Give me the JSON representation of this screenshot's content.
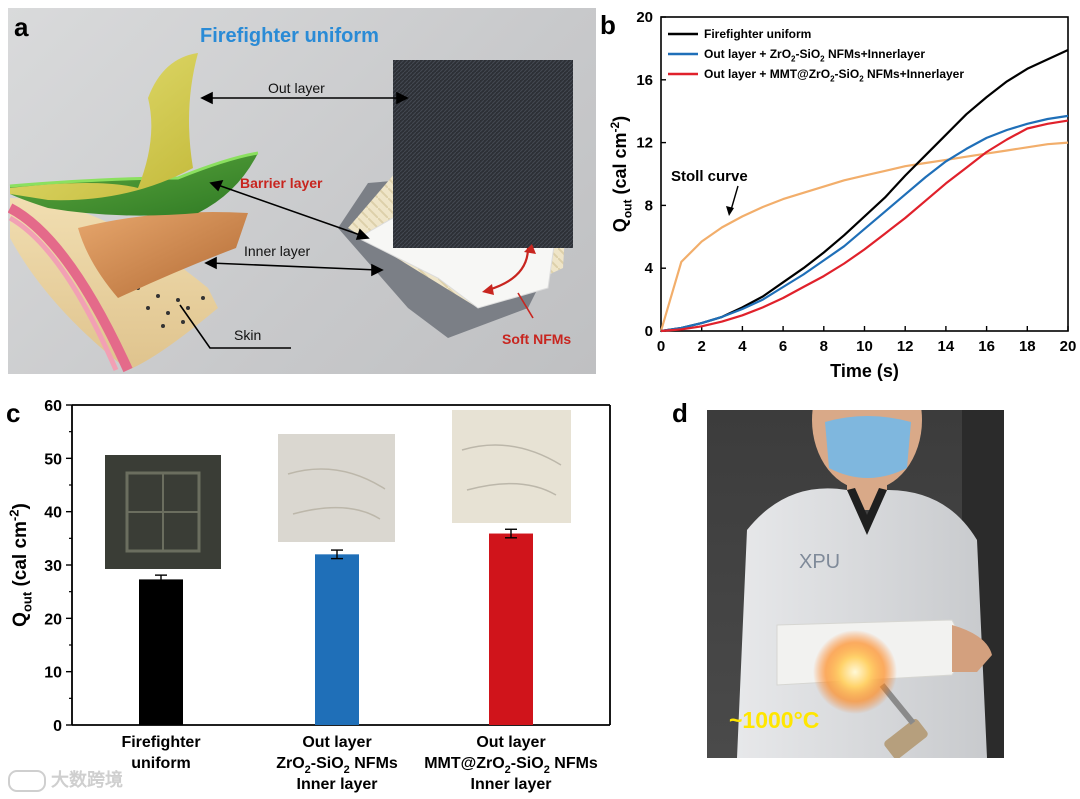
{
  "panel_a": {
    "letter": "a",
    "title": "Firefighter uniform",
    "labels": {
      "out_layer": "Out layer",
      "barrier_layer": "Barrier layer",
      "inner_layer": "Inner layer",
      "skin": "Skin",
      "soft_nfms": "Soft NFMs"
    },
    "colors": {
      "title": "#2a8bd6",
      "barrier": "#c8251f",
      "soft": "#c8251f"
    }
  },
  "panel_b": {
    "letter": "b",
    "annotation": "Stoll curve"
  },
  "panel_c": {
    "letter": "c",
    "category_lines": [
      [
        "Firefighter",
        "uniform"
      ],
      [
        "Out layer",
        "ZrO2-SiO2 NFMs",
        "Inner layer"
      ],
      [
        "Out layer",
        "MMT@ZrO2-SiO2 NFMs",
        "Inner layer"
      ]
    ]
  },
  "panel_d": {
    "letter": "d",
    "coat_text": "XPU",
    "temperature": "~1000°C"
  },
  "watermark": "大数跨境",
  "chart_data": [
    {
      "type": "line",
      "xlabel": "Time (s)",
      "ylabel": "Qout (cal cm-2)",
      "xlim": [
        0,
        20
      ],
      "ylim": [
        0,
        20
      ],
      "xticks": [
        0,
        2,
        4,
        6,
        8,
        10,
        12,
        14,
        16,
        18,
        20
      ],
      "yticks": [
        0,
        4,
        8,
        12,
        16,
        20
      ],
      "legend_position": "top-left",
      "x": [
        0,
        1,
        2,
        3,
        4,
        5,
        6,
        7,
        8,
        9,
        10,
        11,
        12,
        13,
        14,
        15,
        16,
        17,
        18,
        19,
        20
      ],
      "series": [
        {
          "name": "Firefighter uniform",
          "color": "#000000",
          "values": [
            0,
            0.2,
            0.5,
            0.9,
            1.5,
            2.2,
            3.1,
            4.0,
            5.0,
            6.1,
            7.3,
            8.5,
            9.9,
            11.2,
            12.5,
            13.8,
            14.9,
            15.9,
            16.7,
            17.3,
            17.9
          ]
        },
        {
          "name": "Out layer + ZrO2-SiO2 NFMs+Innerlayer",
          "color": "#1f6fb8",
          "values": [
            0,
            0.2,
            0.5,
            0.9,
            1.4,
            2.0,
            2.8,
            3.6,
            4.5,
            5.4,
            6.5,
            7.6,
            8.7,
            9.8,
            10.8,
            11.6,
            12.3,
            12.8,
            13.2,
            13.5,
            13.7
          ]
        },
        {
          "name": "Out layer + MMT@ZrO2-SiO2 NFMs+Innerlayer",
          "color": "#e0212b",
          "values": [
            0,
            0.1,
            0.3,
            0.6,
            1.0,
            1.5,
            2.1,
            2.8,
            3.5,
            4.3,
            5.2,
            6.2,
            7.2,
            8.3,
            9.4,
            10.4,
            11.4,
            12.2,
            12.9,
            13.2,
            13.4
          ]
        },
        {
          "name": "Stoll curve",
          "color": "#f2ae6b",
          "values": [
            0,
            4.4,
            5.7,
            6.6,
            7.3,
            7.9,
            8.4,
            8.8,
            9.2,
            9.6,
            9.9,
            10.2,
            10.5,
            10.7,
            10.9,
            11.1,
            11.3,
            11.5,
            11.7,
            11.9,
            12.0
          ]
        }
      ]
    },
    {
      "type": "bar",
      "xlabel": "",
      "ylabel": "Qout (cal cm-2)",
      "ylim": [
        0,
        60
      ],
      "yticks": [
        0,
        10,
        20,
        30,
        40,
        50,
        60
      ],
      "categories": [
        "Firefighter uniform",
        "Out layer ZrO2-SiO2 NFMs Inner layer",
        "Out layer MMT@ZrO2-SiO2 NFMs Inner layer"
      ],
      "values": [
        27.3,
        32.0,
        35.9
      ],
      "errors": [
        0.8,
        0.8,
        0.8
      ],
      "colors": [
        "#000000",
        "#1f6fb8",
        "#d0141b"
      ]
    }
  ]
}
